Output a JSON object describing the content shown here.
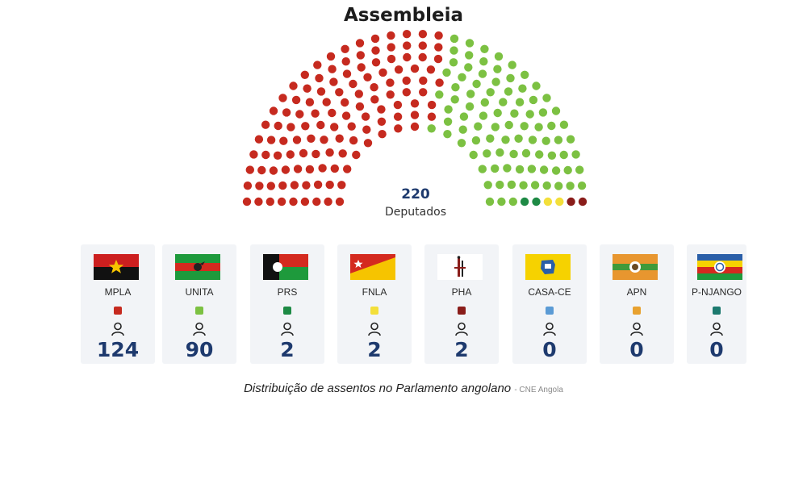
{
  "title": "Assembleia",
  "total": {
    "value": "220",
    "label": "Deputados"
  },
  "caption": {
    "text": "Distribuição de assentos no Parlamento angolano",
    "source": "- CNE Angola"
  },
  "chart_data": {
    "type": "parliament",
    "title": "Assembleia",
    "total_seats": 220,
    "series": [
      {
        "name": "MPLA",
        "seats": 124,
        "color": "#c62a1f"
      },
      {
        "name": "UNITA",
        "seats": 90,
        "color": "#7cc142"
      },
      {
        "name": "PRS",
        "seats": 2,
        "color": "#1e8a45"
      },
      {
        "name": "FNLA",
        "seats": 2,
        "color": "#f3df3a"
      },
      {
        "name": "PHA",
        "seats": 2,
        "color": "#8a1d1a"
      },
      {
        "name": "CASA-CE",
        "seats": 0,
        "color": "#5b9bd5"
      },
      {
        "name": "APN",
        "seats": 0,
        "color": "#e8a12f"
      },
      {
        "name": "P-NJANGO",
        "seats": 0,
        "color": "#1d7a6f"
      }
    ]
  },
  "parties": [
    {
      "name": "MPLA",
      "seats": "124",
      "color": "#c62a1f",
      "flag": "mpla-flag"
    },
    {
      "name": "UNITA",
      "seats": "90",
      "color": "#7cc142",
      "flag": "unita-flag"
    },
    {
      "name": "PRS",
      "seats": "2",
      "color": "#1e8a45",
      "flag": "prs-flag"
    },
    {
      "name": "FNLA",
      "seats": "2",
      "color": "#f3df3a",
      "flag": "fnla-flag"
    },
    {
      "name": "PHA",
      "seats": "2",
      "color": "#8a1d1a",
      "flag": "pha-flag"
    },
    {
      "name": "CASA-CE",
      "seats": "0",
      "color": "#5b9bd5",
      "flag": "casa-ce-flag"
    },
    {
      "name": "APN",
      "seats": "0",
      "color": "#e8a12f",
      "flag": "apn-flag"
    },
    {
      "name": "P-NJANGO",
      "seats": "0",
      "color": "#1d7a6f",
      "flag": "p-njango-flag"
    }
  ]
}
